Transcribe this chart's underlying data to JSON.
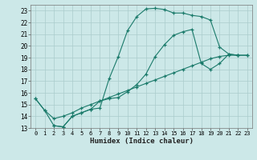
{
  "xlabel": "Humidex (Indice chaleur)",
  "bg_color": "#cce8e8",
  "line_color": "#1a7a6a",
  "grid_color": "#aacccc",
  "xlim": [
    -0.5,
    23.5
  ],
  "ylim": [
    13,
    23.5
  ],
  "xticks": [
    0,
    1,
    2,
    3,
    4,
    5,
    6,
    7,
    8,
    9,
    10,
    11,
    12,
    13,
    14,
    15,
    16,
    17,
    18,
    19,
    20,
    21,
    22,
    23
  ],
  "yticks": [
    13,
    14,
    15,
    16,
    17,
    18,
    19,
    20,
    21,
    22,
    23
  ],
  "curve1_x": [
    0,
    1,
    2,
    3,
    4,
    5,
    6,
    7,
    8,
    9,
    10,
    11,
    12,
    13,
    14,
    15,
    16,
    17,
    18,
    19,
    20,
    21,
    22
  ],
  "curve1_y": [
    15.5,
    14.5,
    13.2,
    13.1,
    14.0,
    14.3,
    14.6,
    14.7,
    17.2,
    19.1,
    21.3,
    22.5,
    23.15,
    23.2,
    23.1,
    22.8,
    22.8,
    22.6,
    22.5,
    22.2,
    19.9,
    19.3,
    19.2
  ],
  "curve2_x": [
    2,
    3,
    4,
    5,
    6,
    7,
    8,
    9,
    10,
    11,
    12,
    13,
    14,
    15,
    16,
    17,
    18,
    19,
    20,
    21,
    22,
    23
  ],
  "curve2_y": [
    13.2,
    13.1,
    14.0,
    14.3,
    14.6,
    15.3,
    15.5,
    15.6,
    16.1,
    16.7,
    17.6,
    19.1,
    20.1,
    20.9,
    21.2,
    21.4,
    18.5,
    18.0,
    18.5,
    19.3,
    19.2,
    19.2
  ],
  "curve3_x": [
    0,
    1,
    2,
    3,
    4,
    5,
    6,
    7,
    8,
    9,
    10,
    11,
    12,
    13,
    14,
    15,
    16,
    17,
    18,
    19,
    20,
    21,
    22,
    23
  ],
  "curve3_y": [
    15.5,
    14.5,
    13.8,
    14.0,
    14.3,
    14.7,
    15.0,
    15.3,
    15.6,
    15.9,
    16.2,
    16.5,
    16.8,
    17.1,
    17.4,
    17.7,
    18.0,
    18.3,
    18.6,
    18.9,
    19.1,
    19.2,
    19.2,
    19.2
  ]
}
